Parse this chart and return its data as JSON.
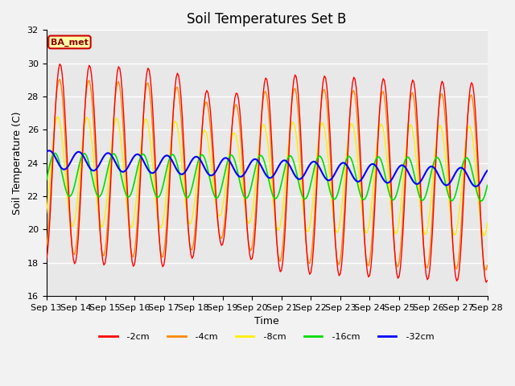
{
  "title": "Soil Temperatures Set B",
  "xlabel": "Time",
  "ylabel": "Soil Temperature (C)",
  "ylim": [
    16,
    32
  ],
  "yticks": [
    16,
    18,
    20,
    22,
    24,
    26,
    28,
    30,
    32
  ],
  "xtick_labels": [
    "Sep 13",
    "Sep 14",
    "Sep 15",
    "Sep 16",
    "Sep 17",
    "Sep 18",
    "Sep 19",
    "Sep 20",
    "Sep 21",
    "Sep 22",
    "Sep 23",
    "Sep 24",
    "Sep 25",
    "Sep 26",
    "Sep 27",
    "Sep 28"
  ],
  "colors": {
    "-2cm": "#ff0000",
    "-4cm": "#ff8800",
    "-8cm": "#ffee00",
    "-16cm": "#00dd00",
    "-32cm": "#0000ff"
  },
  "legend_label": "BA_met",
  "legend_bg": "#ffffaa",
  "legend_border": "#cc0000",
  "background_color": "#e8e8e8",
  "grid_color": "#ffffff",
  "title_fontsize": 12,
  "label_fontsize": 9,
  "tick_fontsize": 8
}
